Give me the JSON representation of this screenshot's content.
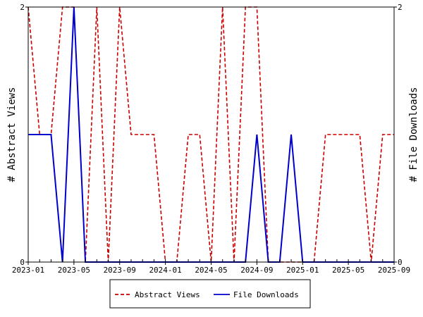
{
  "chart_data": {
    "type": "line",
    "x": [
      "2023-01",
      "2023-02",
      "2023-03",
      "2023-04",
      "2023-05",
      "2023-06",
      "2023-07",
      "2023-08",
      "2023-09",
      "2023-10",
      "2023-11",
      "2023-12",
      "2024-01",
      "2024-02",
      "2024-03",
      "2024-04",
      "2024-05",
      "2024-06",
      "2024-07",
      "2024-08",
      "2024-09",
      "2024-10",
      "2024-11",
      "2024-12",
      "2025-01",
      "2025-02",
      "2025-03",
      "2025-04",
      "2025-05",
      "2025-06",
      "2025-07",
      "2025-08",
      "2025-09"
    ],
    "x_tick_labels": [
      "2023-01",
      "2023-05",
      "2023-09",
      "2024-01",
      "2024-05",
      "2024-09",
      "2025-01",
      "2025-05",
      "2025-09"
    ],
    "xlim": [
      "2023-01",
      "2025-09"
    ],
    "series": [
      {
        "name": "Abstract Views",
        "axis": "left",
        "color": "#cc0000",
        "style": "dashed",
        "values": [
          2,
          1,
          1,
          2,
          2,
          0,
          2,
          0,
          2,
          1,
          1,
          1,
          0,
          0,
          1,
          1,
          0,
          2,
          0,
          2,
          2,
          0,
          0,
          0,
          0,
          0,
          1,
          1,
          1,
          1,
          0,
          1,
          1
        ]
      },
      {
        "name": "File Downloads",
        "axis": "right",
        "color": "#0000cc",
        "style": "solid",
        "values": [
          1,
          1,
          1,
          0,
          2,
          0,
          0,
          0,
          0,
          0,
          0,
          0,
          0,
          0,
          0,
          0,
          0,
          0,
          0,
          0,
          1,
          0,
          0,
          1,
          0,
          0,
          0,
          0,
          0,
          0,
          0,
          0,
          0
        ]
      }
    ],
    "ylabel_left": "# Abstract Views",
    "ylabel_right": "# File Downloads",
    "ylim_left": [
      0,
      2
    ],
    "ylim_right": [
      0,
      2
    ],
    "y_ticks_left": [
      "0",
      "2"
    ],
    "y_ticks_right": [
      "0",
      "2"
    ],
    "grid": false,
    "legend": {
      "placement": "bottom-center",
      "entries": [
        "Abstract Views",
        "File Downloads"
      ]
    }
  }
}
